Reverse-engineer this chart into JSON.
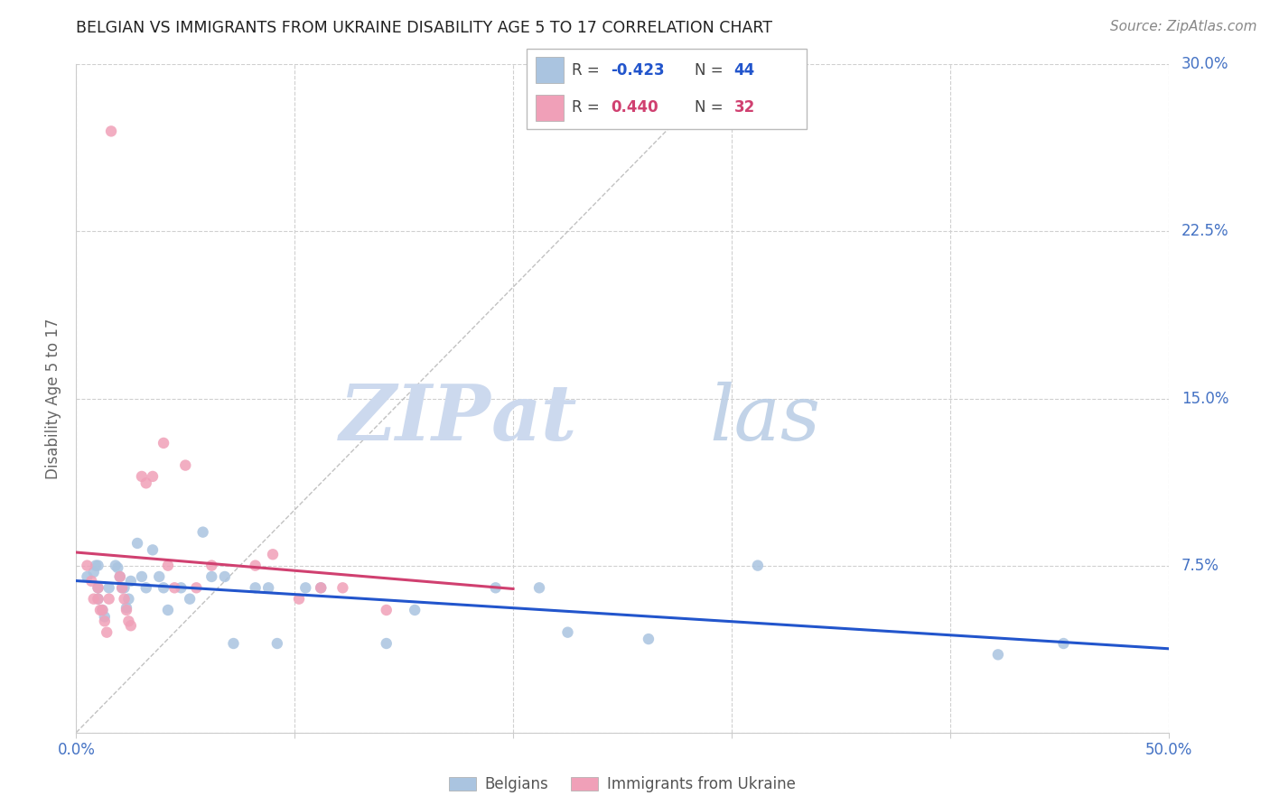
{
  "title": "BELGIAN VS IMMIGRANTS FROM UKRAINE DISABILITY AGE 5 TO 17 CORRELATION CHART",
  "source": "Source: ZipAtlas.com",
  "ylabel": "Disability Age 5 to 17",
  "xlim": [
    0.0,
    0.5
  ],
  "ylim": [
    0.0,
    0.3
  ],
  "xticks": [
    0.0,
    0.1,
    0.2,
    0.3,
    0.4,
    0.5
  ],
  "yticks": [
    0.0,
    0.075,
    0.15,
    0.225,
    0.3
  ],
  "ytick_labels_right": [
    "",
    "7.5%",
    "15.0%",
    "22.5%",
    "30.0%"
  ],
  "xtick_labels": [
    "0.0%",
    "",
    "",
    "",
    "",
    "50.0%"
  ],
  "background_color": "#ffffff",
  "grid_color": "#d0d0d0",
  "belgian_color": "#aac4e0",
  "ukraine_color": "#f0a0b8",
  "belgian_line_color": "#2255cc",
  "ukraine_line_color": "#d04070",
  "diagonal_color": "#bbbbbb",
  "legend_r_belgian": "-0.423",
  "legend_n_belgian": "44",
  "legend_r_ukraine": "0.440",
  "legend_n_ukraine": "32",
  "belgians_x": [
    0.005,
    0.008,
    0.009,
    0.01,
    0.01,
    0.01,
    0.012,
    0.013,
    0.015,
    0.018,
    0.019,
    0.02,
    0.021,
    0.022,
    0.023,
    0.024,
    0.025,
    0.028,
    0.03,
    0.032,
    0.035,
    0.038,
    0.04,
    0.042,
    0.048,
    0.052,
    0.058,
    0.062,
    0.068,
    0.072,
    0.082,
    0.088,
    0.092,
    0.105,
    0.112,
    0.142,
    0.155,
    0.192,
    0.212,
    0.225,
    0.262,
    0.312,
    0.422,
    0.452
  ],
  "belgians_y": [
    0.07,
    0.072,
    0.075,
    0.075,
    0.065,
    0.06,
    0.055,
    0.052,
    0.065,
    0.075,
    0.074,
    0.07,
    0.065,
    0.065,
    0.056,
    0.06,
    0.068,
    0.085,
    0.07,
    0.065,
    0.082,
    0.07,
    0.065,
    0.055,
    0.065,
    0.06,
    0.09,
    0.07,
    0.07,
    0.04,
    0.065,
    0.065,
    0.04,
    0.065,
    0.065,
    0.04,
    0.055,
    0.065,
    0.065,
    0.045,
    0.042,
    0.075,
    0.035,
    0.04
  ],
  "ukraine_x": [
    0.005,
    0.007,
    0.008,
    0.01,
    0.01,
    0.011,
    0.012,
    0.013,
    0.014,
    0.015,
    0.016,
    0.02,
    0.021,
    0.022,
    0.023,
    0.024,
    0.025,
    0.03,
    0.032,
    0.035,
    0.04,
    0.042,
    0.045,
    0.05,
    0.055,
    0.062,
    0.082,
    0.09,
    0.102,
    0.112,
    0.122,
    0.142
  ],
  "ukraine_y": [
    0.075,
    0.068,
    0.06,
    0.065,
    0.06,
    0.055,
    0.055,
    0.05,
    0.045,
    0.06,
    0.27,
    0.07,
    0.065,
    0.06,
    0.055,
    0.05,
    0.048,
    0.115,
    0.112,
    0.115,
    0.13,
    0.075,
    0.065,
    0.12,
    0.065,
    0.075,
    0.075,
    0.08,
    0.06,
    0.065,
    0.065,
    0.055
  ]
}
